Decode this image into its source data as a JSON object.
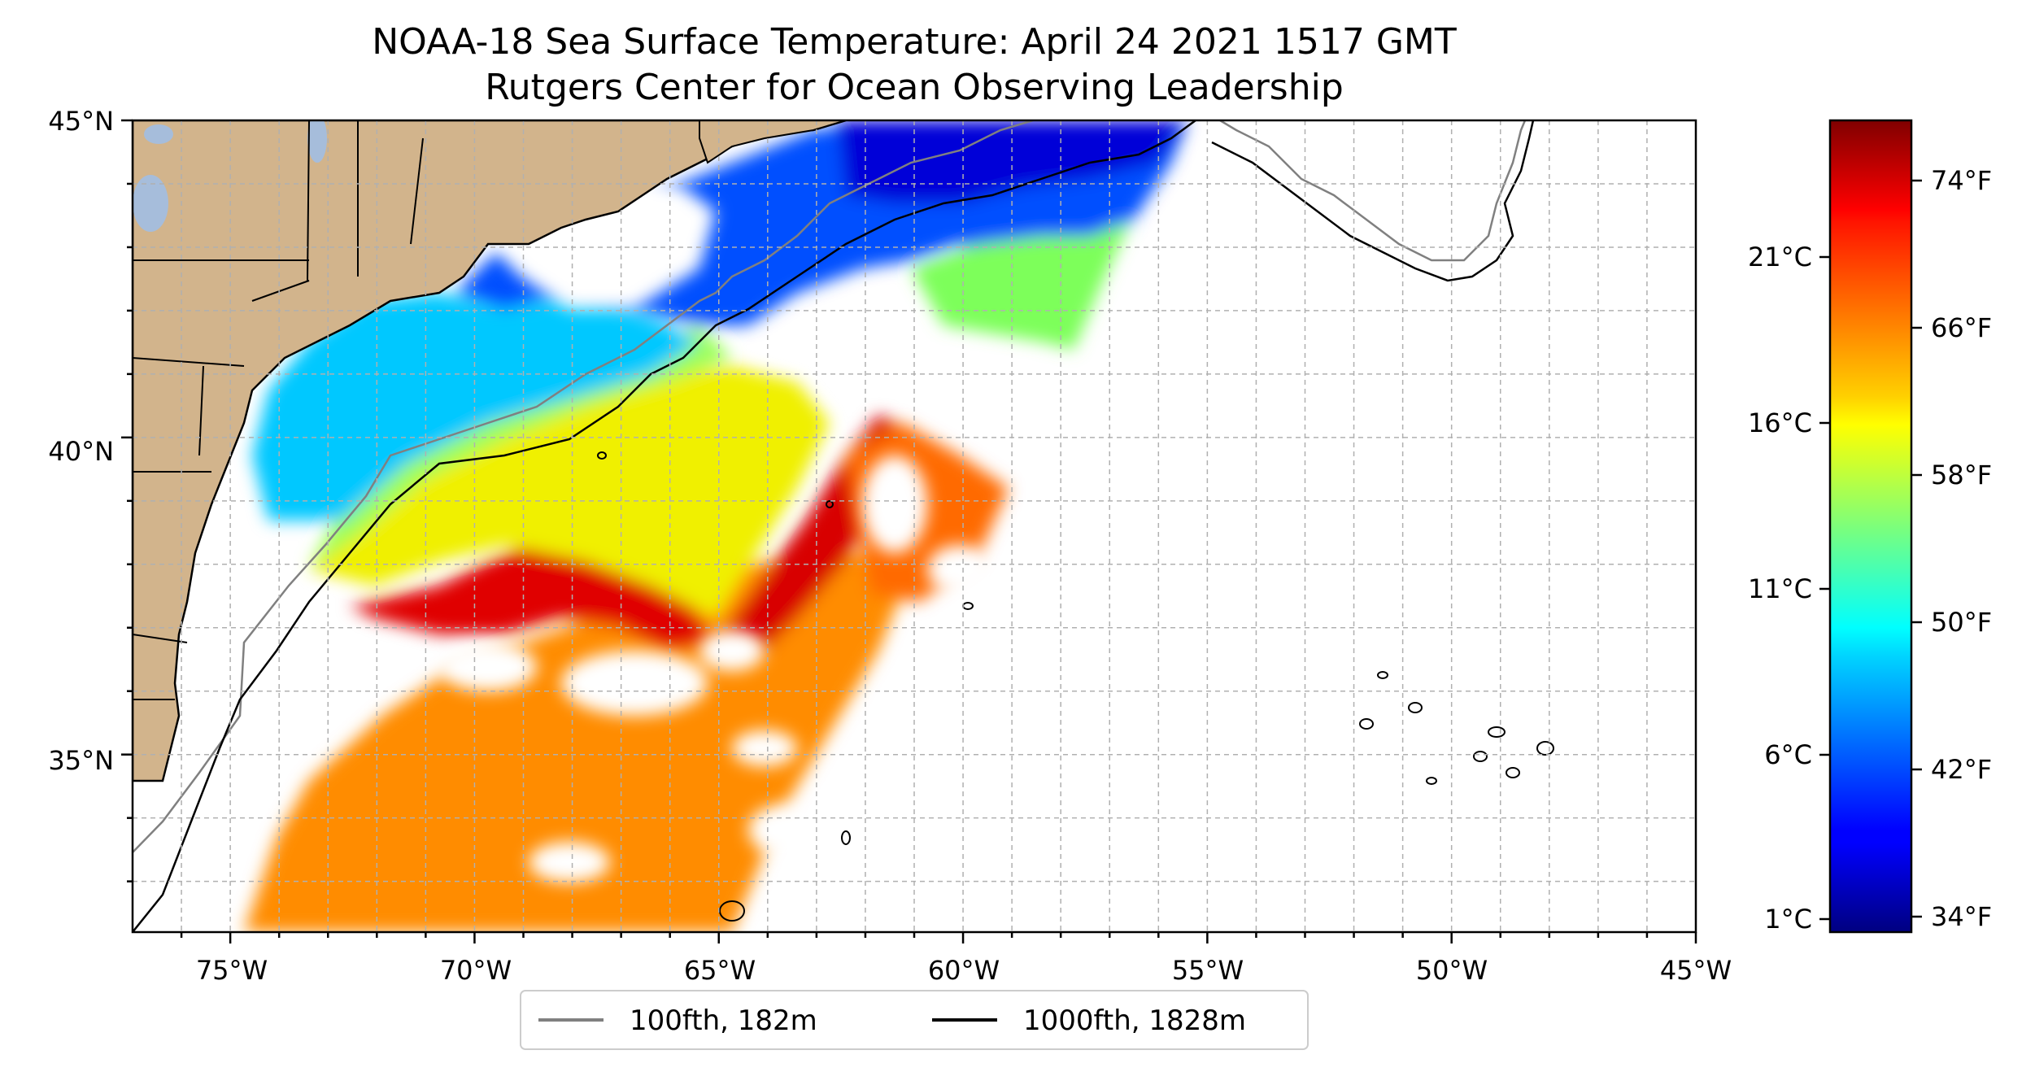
{
  "title_line1": "NOAA-18 Sea Surface Temperature: April 24 2021 1517 GMT",
  "title_line2": "Rutgers Center for Ocean Observing Leadership",
  "map": {
    "lon_range": [
      -77,
      -45
    ],
    "lat_range": [
      32.2,
      45
    ],
    "lon_ticks": [
      "75°W",
      "70°W",
      "65°W",
      "60°W",
      "55°W",
      "50°W",
      "45°W"
    ],
    "lat_ticks": [
      "45°N",
      "40°N",
      "35°N"
    ],
    "grid": true,
    "land_color": "#d2b48c",
    "ocean_color": "#ffffff"
  },
  "colorbar": {
    "colormap": "jet",
    "celsius_ticks": [
      "21°C",
      "16°C",
      "11°C",
      "6°C",
      "1°C"
    ],
    "fahrenheit_ticks": [
      "74°F",
      "66°F",
      "58°F",
      "50°F",
      "42°F",
      "34°F"
    ]
  },
  "legend": {
    "placement": "bottom-center",
    "items": [
      {
        "label": "100fth, 182m",
        "color": "#808080"
      },
      {
        "label": "1000fth, 1828m",
        "color": "#000000"
      }
    ]
  }
}
